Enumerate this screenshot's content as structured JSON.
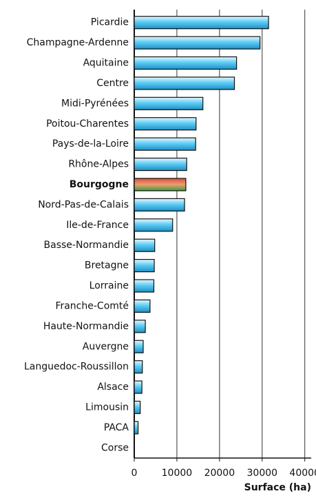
{
  "chart_data": {
    "type": "barh",
    "categories": [
      "Picardie",
      "Champagne-Ardenne",
      "Aquitaine",
      "Centre",
      "Midi-Pyrénées",
      "Poitou-Charentes",
      "Pays-de-la-Loire",
      "Rhône-Alpes",
      "Bourgogne",
      "Nord-Pas-de-Calais",
      "Ile-de-France",
      "Basse-Normandie",
      "Bretagne",
      "Lorraine",
      "Franche-Comté",
      "Haute-Normandie",
      "Auvergne",
      "Languedoc-Roussillon",
      "Alsace",
      "Limousin",
      "PACA",
      "Corse"
    ],
    "values": [
      31500,
      29500,
      24000,
      23500,
      16100,
      14500,
      14400,
      12300,
      12100,
      11800,
      9000,
      4800,
      4700,
      4600,
      3700,
      2600,
      2100,
      1900,
      1800,
      1400,
      900,
      0
    ],
    "color": "#4ec4f0",
    "highlight": "Bourgogne",
    "highlight_color": "#d9503a",
    "xlabel": "Surface (ha)",
    "xlim": [
      0,
      41500
    ],
    "xticks": [
      0,
      10000,
      20000,
      30000,
      40000
    ],
    "grid": true
  }
}
